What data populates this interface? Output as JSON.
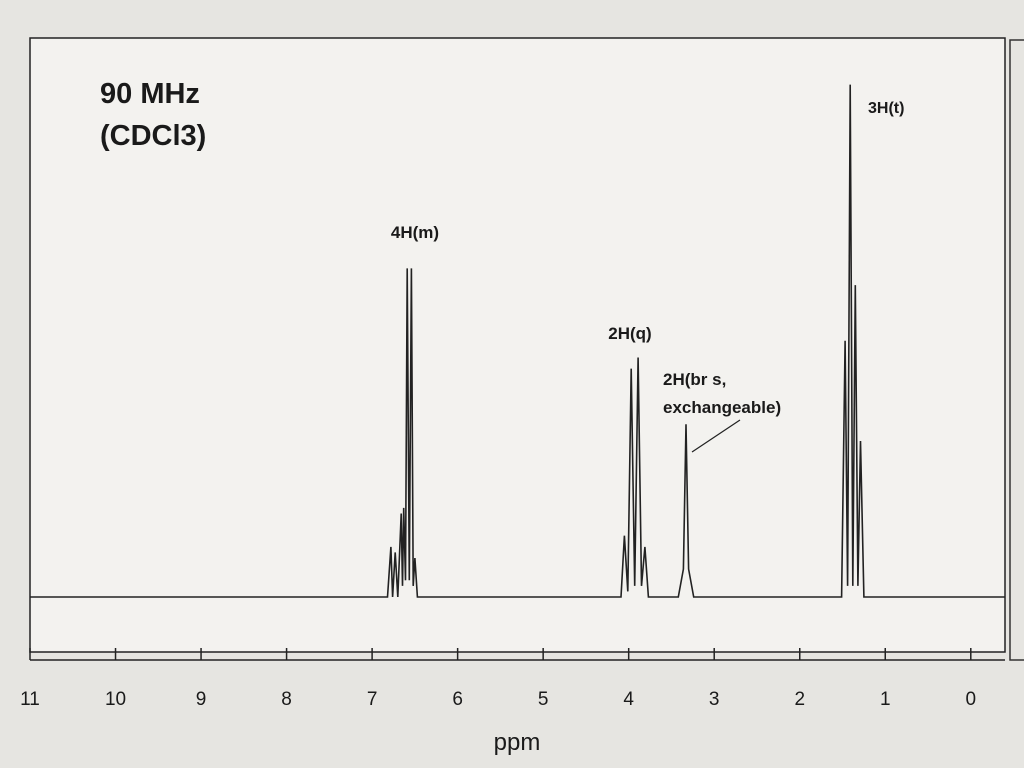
{
  "chart_data": {
    "type": "line",
    "annotations": [
      "90 MHz",
      "(CDCl3)",
      "4H(m)",
      "2H(q)",
      "2H(br s,",
      "exchangeable)",
      "3H(t)"
    ],
    "xlabel": "ppm",
    "xlim": [
      11,
      -0.4
    ],
    "xticks": [
      11,
      10,
      9,
      8,
      7,
      6,
      5,
      4,
      3,
      2,
      1,
      0
    ],
    "ylim": [
      0,
      100
    ],
    "color": "#222222",
    "x": [
      11,
      6.82,
      6.78,
      6.76,
      6.73,
      6.7,
      6.66,
      6.645,
      6.63,
      6.61,
      6.59,
      6.565,
      6.54,
      6.52,
      6.5,
      6.47,
      4.09,
      4.05,
      4.01,
      3.97,
      3.93,
      3.89,
      3.85,
      3.81,
      3.77,
      3.42,
      3.36,
      3.33,
      3.3,
      3.24,
      1.51,
      1.47,
      1.44,
      1.41,
      1.38,
      1.35,
      1.32,
      1.29,
      1.25,
      -0.4
    ],
    "values": [
      0,
      0,
      9,
      0,
      8,
      0,
      15,
      2,
      16,
      3,
      59,
      3,
      59,
      2,
      7,
      0,
      0,
      11,
      1,
      41,
      2,
      43,
      2,
      9,
      0,
      0,
      5,
      31,
      5,
      0,
      0,
      46,
      2,
      92,
      2,
      56,
      2,
      28,
      0,
      0
    ]
  }
}
